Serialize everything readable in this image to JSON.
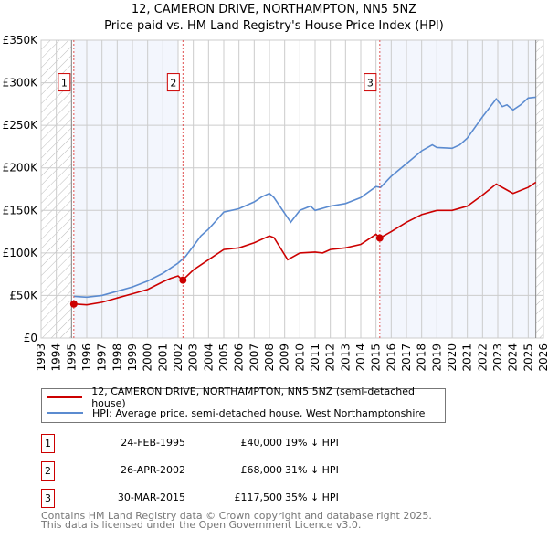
{
  "chart_data": {
    "type": "line",
    "title": "12, CAMERON DRIVE, NORTHAMPTON, NN5 5NZ",
    "subtitle": "Price paid vs. HM Land Registry's House Price Index (HPI)",
    "xlim": [
      1993,
      2026
    ],
    "ylim": [
      0,
      350000
    ],
    "grid": true,
    "x_ticks": [
      "1993",
      "1994",
      "1995",
      "1996",
      "1997",
      "1998",
      "1999",
      "2000",
      "2001",
      "2002",
      "2003",
      "2004",
      "2005",
      "2006",
      "2007",
      "2008",
      "2009",
      "2010",
      "2011",
      "2012",
      "2013",
      "2014",
      "2015",
      "2016",
      "2017",
      "2018",
      "2019",
      "2020",
      "2021",
      "2022",
      "2023",
      "2024",
      "2025",
      "2026"
    ],
    "y_ticks": [
      {
        "value": 0,
        "label": "£0"
      },
      {
        "value": 50000,
        "label": "£50K"
      },
      {
        "value": 100000,
        "label": "£100K"
      },
      {
        "value": 150000,
        "label": "£150K"
      },
      {
        "value": 200000,
        "label": "£200K"
      },
      {
        "value": 250000,
        "label": "£250K"
      },
      {
        "value": 300000,
        "label": "£300K"
      },
      {
        "value": 350000,
        "label": "£350K"
      }
    ],
    "series": [
      {
        "name": "12, CAMERON DRIVE, NORTHAMPTON, NN5 5NZ (semi-detached house)",
        "color": "#cc0000",
        "x": [
          1995.15,
          1996,
          1997,
          1998,
          1999,
          2000,
          2001,
          2001.5,
          2002,
          2002.3,
          2003,
          2004,
          2005,
          2006,
          2007,
          2008,
          2008.3,
          2009.2,
          2010,
          2011,
          2011.5,
          2012,
          2013,
          2014,
          2015,
          2015.25,
          2016,
          2017,
          2018,
          2019,
          2020,
          2021,
          2022,
          2022.9,
          2023.5,
          2024,
          2025,
          2025.5
        ],
        "y": [
          40000,
          39000,
          42000,
          47000,
          52000,
          57000,
          66000,
          70000,
          73000,
          68000,
          80000,
          92000,
          104000,
          106000,
          112000,
          120000,
          118000,
          92000,
          100000,
          101000,
          100000,
          104000,
          106000,
          110000,
          122000,
          117500,
          125000,
          136000,
          145000,
          150000,
          150000,
          155000,
          168000,
          181000,
          175000,
          170000,
          177000,
          183000
        ]
      },
      {
        "name": "HPI: Average price, semi-detached house, West Northamptonshire",
        "color": "#5b8bd0",
        "x": [
          1995.15,
          1996,
          1997,
          1998,
          1999,
          2000,
          2001,
          2001.5,
          2002,
          2002.5,
          2003,
          2003.5,
          2004,
          2004.5,
          2005,
          2005.5,
          2006,
          2007,
          2007.5,
          2008,
          2008.3,
          2009.4,
          2010,
          2010.7,
          2011,
          2012,
          2013,
          2014,
          2015,
          2015.3,
          2016,
          2017,
          2018,
          2018.7,
          2019,
          2020,
          2020.5,
          2021,
          2022,
          2022.9,
          2023.3,
          2023.6,
          2024,
          2024.5,
          2025,
          2025.5
        ],
        "y": [
          49000,
          48000,
          50000,
          55000,
          60000,
          67000,
          76000,
          82000,
          88000,
          96000,
          108000,
          120000,
          128000,
          138000,
          148000,
          150000,
          152000,
          160000,
          166000,
          170000,
          165000,
          136000,
          150000,
          155000,
          150000,
          155000,
          158000,
          165000,
          178000,
          177000,
          190000,
          205000,
          220000,
          227000,
          224000,
          223000,
          227000,
          235000,
          260000,
          281000,
          272000,
          274000,
          268000,
          274000,
          282000,
          283000
        ]
      }
    ],
    "sales": [
      {
        "label": "1",
        "x": 1995.15,
        "price": 40000,
        "date": "24-FEB-1995",
        "price_text": "£40,000",
        "hpi_text": "19% ↓ HPI"
      },
      {
        "label": "2",
        "x": 2002.32,
        "price": 68000,
        "date": "26-APR-2002",
        "price_text": "£68,000",
        "hpi_text": "31% ↓ HPI"
      },
      {
        "label": "3",
        "x": 2015.25,
        "price": 117500,
        "date": "30-MAR-2015",
        "price_text": "£117,500",
        "hpi_text": "35% ↓ HPI"
      }
    ]
  },
  "legend": {
    "property": "12, CAMERON DRIVE, NORTHAMPTON, NN5 5NZ (semi-detached house)",
    "hpi": "HPI: Average price, semi-detached house, West Northamptonshire"
  },
  "footer": {
    "line1": "Contains HM Land Registry data © Crown copyright and database right 2025.",
    "line2": "This data is licensed under the Open Government Licence v3.0."
  }
}
